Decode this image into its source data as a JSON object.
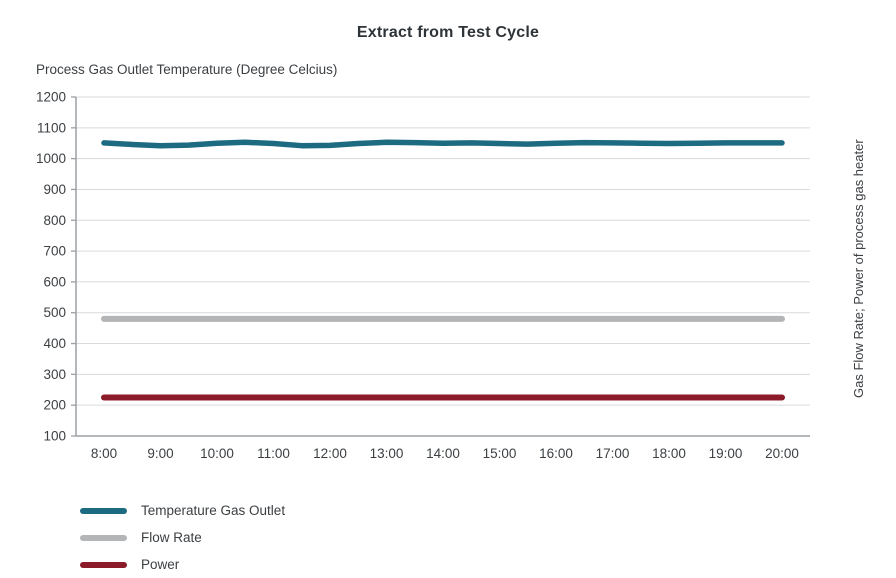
{
  "title": "Extract from Test Cycle",
  "axis_left_title": "Process Gas Outlet Temperature (Degree Celcius)",
  "axis_right_title": "Gas Flow Rate; Power of process gas heater",
  "colors": {
    "temperature": "#1d6b81",
    "flow_rate": "#b3b5b7",
    "power": "#8c1b2a",
    "gridline": "#d9dadb",
    "axis": "#9ba0a4",
    "text": "#3c4043"
  },
  "legend": {
    "items": [
      {
        "label": "Temperature Gas Outlet",
        "color": "#1d6b81"
      },
      {
        "label": "Flow Rate",
        "color": "#b3b5b7"
      },
      {
        "label": "Power",
        "color": "#8c1b2a"
      }
    ]
  },
  "chart_data": {
    "type": "line",
    "title": "Extract from Test Cycle",
    "xlabel": "",
    "ylabel_left": "Process Gas Outlet Temperature (Degree Celcius)",
    "ylabel_right": "Gas Flow Rate; Power of process gas heater",
    "ylim": [
      100,
      1200
    ],
    "yticks": [
      100,
      200,
      300,
      400,
      500,
      600,
      700,
      800,
      900,
      1000,
      1100,
      1200
    ],
    "x_tick_labels": [
      "8:00",
      "9:00",
      "10:00",
      "11:00",
      "12:00",
      "13:00",
      "14:00",
      "15:00",
      "16:00",
      "17:00",
      "18:00",
      "19:00",
      "20:00"
    ],
    "x_range_hours": [
      8,
      20
    ],
    "grid": "horizontal",
    "legend_position": "bottom-left",
    "series": [
      {
        "name": "Temperature Gas Outlet",
        "color": "#1d6b81",
        "stroke_width": 5.5,
        "approx_value": 1050,
        "x_hours": [
          8,
          8.5,
          9,
          9.5,
          10,
          10.5,
          11,
          11.5,
          12,
          12.5,
          13,
          13.5,
          14,
          14.5,
          15,
          15.5,
          16,
          16.5,
          17,
          17.5,
          18,
          18.5,
          19,
          19.5,
          20
        ],
        "values": [
          1051,
          1046,
          1042,
          1044,
          1050,
          1053,
          1049,
          1042,
          1043,
          1049,
          1053,
          1052,
          1050,
          1051,
          1049,
          1047,
          1050,
          1052,
          1051,
          1050,
          1049,
          1050,
          1051,
          1051,
          1051
        ]
      },
      {
        "name": "Flow Rate",
        "color": "#b3b5b7",
        "stroke_width": 6,
        "approx_value": 480,
        "x_hours": [
          8,
          20
        ],
        "values": [
          480,
          480
        ]
      },
      {
        "name": "Power",
        "color": "#8c1b2a",
        "stroke_width": 6,
        "approx_value": 225,
        "x_hours": [
          8,
          20
        ],
        "values": [
          225,
          225
        ]
      }
    ]
  }
}
